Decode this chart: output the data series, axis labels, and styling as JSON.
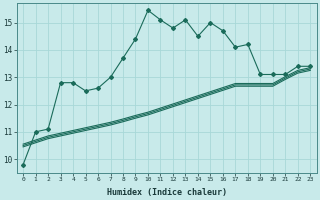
{
  "xlabel": "Humidex (Indice chaleur)",
  "ylabel": "",
  "bg_color": "#c8eaea",
  "grid_color": "#a8d8d8",
  "line_color": "#1a6b5a",
  "xlim": [
    -0.5,
    23.5
  ],
  "ylim": [
    9.5,
    15.7
  ],
  "yticks": [
    10,
    11,
    12,
    13,
    14,
    15
  ],
  "xticks": [
    0,
    1,
    2,
    3,
    4,
    5,
    6,
    7,
    8,
    9,
    10,
    11,
    12,
    13,
    14,
    15,
    16,
    17,
    18,
    19,
    20,
    21,
    22,
    23
  ],
  "series1_x": [
    0,
    1,
    2,
    3,
    4,
    5,
    6,
    7,
    8,
    9,
    10,
    11,
    12,
    13,
    14,
    15,
    16,
    17,
    18,
    19,
    20,
    21,
    22,
    23
  ],
  "series1_y": [
    9.8,
    11.0,
    11.1,
    12.8,
    12.8,
    12.5,
    12.6,
    13.0,
    13.7,
    14.4,
    15.45,
    15.1,
    14.8,
    15.1,
    14.5,
    15.0,
    14.7,
    14.1,
    14.2,
    13.1,
    13.1,
    13.1,
    13.4,
    13.4
  ],
  "series2_x": [
    0,
    1,
    2,
    3,
    4,
    5,
    6,
    7,
    8,
    9,
    10,
    11,
    12,
    13,
    14,
    15,
    16,
    17,
    18,
    19,
    20,
    21,
    22,
    23
  ],
  "series2_y": [
    10.55,
    10.7,
    10.85,
    10.95,
    11.05,
    11.15,
    11.25,
    11.35,
    11.47,
    11.6,
    11.72,
    11.87,
    12.02,
    12.17,
    12.32,
    12.47,
    12.62,
    12.77,
    12.77,
    12.77,
    12.77,
    13.02,
    13.25,
    13.35
  ],
  "series3_x": [
    0,
    1,
    2,
    3,
    4,
    5,
    6,
    7,
    8,
    9,
    10,
    11,
    12,
    13,
    14,
    15,
    16,
    17,
    18,
    19,
    20,
    21,
    22,
    23
  ],
  "series3_y": [
    10.5,
    10.65,
    10.8,
    10.9,
    11.0,
    11.1,
    11.2,
    11.3,
    11.42,
    11.55,
    11.67,
    11.82,
    11.97,
    12.12,
    12.27,
    12.42,
    12.57,
    12.72,
    12.72,
    12.72,
    12.72,
    12.97,
    13.2,
    13.3
  ],
  "series4_x": [
    0,
    1,
    2,
    3,
    4,
    5,
    6,
    7,
    8,
    9,
    10,
    11,
    12,
    13,
    14,
    15,
    16,
    17,
    18,
    19,
    20,
    21,
    22,
    23
  ],
  "series4_y": [
    10.45,
    10.6,
    10.75,
    10.85,
    10.95,
    11.05,
    11.15,
    11.25,
    11.37,
    11.5,
    11.62,
    11.77,
    11.92,
    12.07,
    12.22,
    12.37,
    12.52,
    12.67,
    12.67,
    12.67,
    12.67,
    12.92,
    13.15,
    13.25
  ]
}
